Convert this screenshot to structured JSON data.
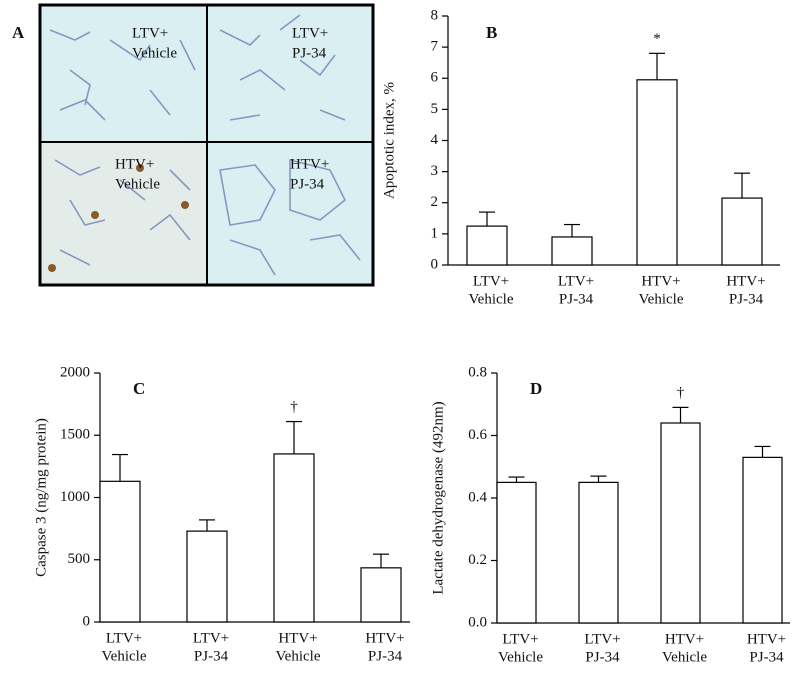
{
  "panel_a": {
    "label": "A",
    "captions": [
      [
        "LTV+",
        "Vehicle"
      ],
      [
        "LTV+",
        "PJ-34"
      ],
      [
        "HTV+",
        "Vehicle"
      ],
      [
        "HTV+",
        "PJ-34"
      ]
    ]
  },
  "chart_data": [
    {
      "type": "bar",
      "label": "B",
      "ylabel": "Apoptotic index, %",
      "categories": [
        [
          "LTV+",
          "Vehicle"
        ],
        [
          "LTV+",
          "PJ-34"
        ],
        [
          "HTV+",
          "Vehicle"
        ],
        [
          "HTV+",
          "PJ-34"
        ]
      ],
      "values": [
        1.25,
        0.9,
        5.95,
        2.15
      ],
      "errors": [
        0.45,
        0.4,
        0.85,
        0.8
      ],
      "value_annotations": [
        null,
        null,
        "*",
        null
      ],
      "color": "#ffffff",
      "edgecolor": "#000000",
      "ylim": [
        0,
        8
      ],
      "yticks": [
        0,
        1,
        2,
        3,
        4,
        5,
        6,
        7,
        8
      ]
    },
    {
      "type": "bar",
      "label": "C",
      "ylabel": "Caspase 3 (ng/mg protein)",
      "categories": [
        [
          "LTV+",
          "Vehicle"
        ],
        [
          "LTV+",
          "PJ-34"
        ],
        [
          "HTV+",
          "Vehicle"
        ],
        [
          "HTV+",
          "PJ-34"
        ]
      ],
      "values": [
        1130,
        730,
        1350,
        435
      ],
      "errors": [
        215,
        90,
        260,
        110
      ],
      "value_annotations": [
        null,
        null,
        "†",
        null
      ],
      "color": "#ffffff",
      "edgecolor": "#000000",
      "ylim": [
        0,
        2000
      ],
      "yticks": [
        0,
        500,
        1000,
        1500,
        2000
      ]
    },
    {
      "type": "bar",
      "label": "D",
      "ylabel": "Lactate dehydrogenase  (492nm)",
      "categories": [
        [
          "LTV+",
          "Vehicle"
        ],
        [
          "LTV+",
          "PJ-34"
        ],
        [
          "HTV+",
          "Vehicle"
        ],
        [
          "HTV+",
          "PJ-34"
        ]
      ],
      "values": [
        0.45,
        0.45,
        0.64,
        0.53
      ],
      "errors": [
        0.017,
        0.02,
        0.05,
        0.035
      ],
      "value_annotations": [
        null,
        null,
        "†",
        null
      ],
      "color": "#ffffff",
      "edgecolor": "#000000",
      "ylim": [
        0,
        0.8
      ],
      "yticks": [
        {
          "value": 0,
          "label": "0.0"
        },
        0.2,
        0.4,
        0.6,
        0.8
      ]
    }
  ]
}
